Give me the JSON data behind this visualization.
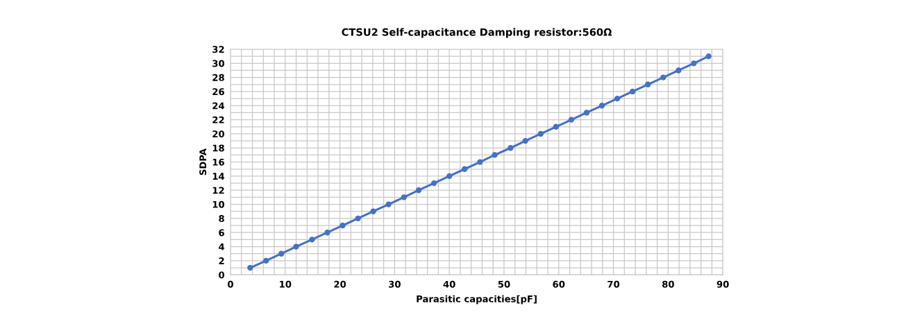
{
  "chart_data": {
    "type": "line",
    "title": "CTSU2 Self-capacitance Damping resistor:560Ω",
    "xlabel": "Parasitic capacities[pF]",
    "ylabel": "SDPA",
    "x": [
      3.6,
      6.5,
      9.3,
      12.0,
      14.9,
      17.7,
      20.5,
      23.3,
      26.1,
      28.9,
      31.7,
      34.4,
      37.2,
      40.0,
      42.8,
      45.6,
      48.3,
      51.2,
      53.9,
      56.7,
      59.5,
      62.3,
      65.1,
      67.9,
      70.7,
      73.5,
      76.3,
      79.1,
      81.9,
      84.7,
      87.4
    ],
    "series": [
      {
        "color": "#4472c4",
        "values": [
          1,
          2,
          3,
          4,
          5,
          6,
          7,
          8,
          9,
          10,
          11,
          12,
          13,
          14,
          15,
          16,
          17,
          18,
          19,
          20,
          21,
          22,
          23,
          24,
          25,
          26,
          27,
          28,
          29,
          30,
          31
        ]
      }
    ],
    "xlim": [
      0,
      90
    ],
    "ylim": [
      0,
      32
    ],
    "xticks": [
      0,
      {
        "value": 2,
        "label": null
      },
      {
        "value": 4,
        "label": null
      },
      {
        "value": 6,
        "label": null
      },
      {
        "value": 8,
        "label": null
      },
      10,
      {
        "value": 12,
        "label": null
      },
      {
        "value": 14,
        "label": null
      },
      {
        "value": 16,
        "label": null
      },
      {
        "value": 18,
        "label": null
      },
      20,
      {
        "value": 22,
        "label": null
      },
      {
        "value": 24,
        "label": null
      },
      {
        "value": 26,
        "label": null
      },
      {
        "value": 28,
        "label": null
      },
      30,
      {
        "value": 32,
        "label": null
      },
      {
        "value": 34,
        "label": null
      },
      {
        "value": 36,
        "label": null
      },
      {
        "value": 38,
        "label": null
      },
      40,
      {
        "value": 42,
        "label": null
      },
      {
        "value": 44,
        "label": null
      },
      {
        "value": 46,
        "label": null
      },
      {
        "value": 48,
        "label": null
      },
      50,
      {
        "value": 52,
        "label": null
      },
      {
        "value": 54,
        "label": null
      },
      {
        "value": 56,
        "label": null
      },
      {
        "value": 58,
        "label": null
      },
      60,
      {
        "value": 62,
        "label": null
      },
      {
        "value": 64,
        "label": null
      },
      {
        "value": 66,
        "label": null
      },
      {
        "value": 68,
        "label": null
      },
      70,
      {
        "value": 72,
        "label": null
      },
      {
        "value": 74,
        "label": null
      },
      {
        "value": 76,
        "label": null
      },
      {
        "value": 78,
        "label": null
      },
      80,
      {
        "value": 82,
        "label": null
      },
      {
        "value": 84,
        "label": null
      },
      {
        "value": 86,
        "label": null
      },
      {
        "value": 88,
        "label": null
      },
      90
    ],
    "yticks": [
      0,
      {
        "value": 1,
        "label": null
      },
      2,
      {
        "value": 3,
        "label": null
      },
      4,
      {
        "value": 5,
        "label": null
      },
      6,
      {
        "value": 7,
        "label": null
      },
      8,
      {
        "value": 9,
        "label": null
      },
      10,
      {
        "value": 11,
        "label": null
      },
      12,
      {
        "value": 13,
        "label": null
      },
      14,
      {
        "value": 15,
        "label": null
      },
      16,
      {
        "value": 17,
        "label": null
      },
      18,
      {
        "value": 19,
        "label": null
      },
      20,
      {
        "value": 21,
        "label": null
      },
      22,
      {
        "value": 23,
        "label": null
      },
      24,
      {
        "value": 25,
        "label": null
      },
      26,
      {
        "value": 27,
        "label": null
      },
      28,
      {
        "value": 29,
        "label": null
      },
      30,
      {
        "value": 31,
        "label": null
      },
      32
    ],
    "grid": true,
    "marker": "circle",
    "line_style": "solid"
  }
}
